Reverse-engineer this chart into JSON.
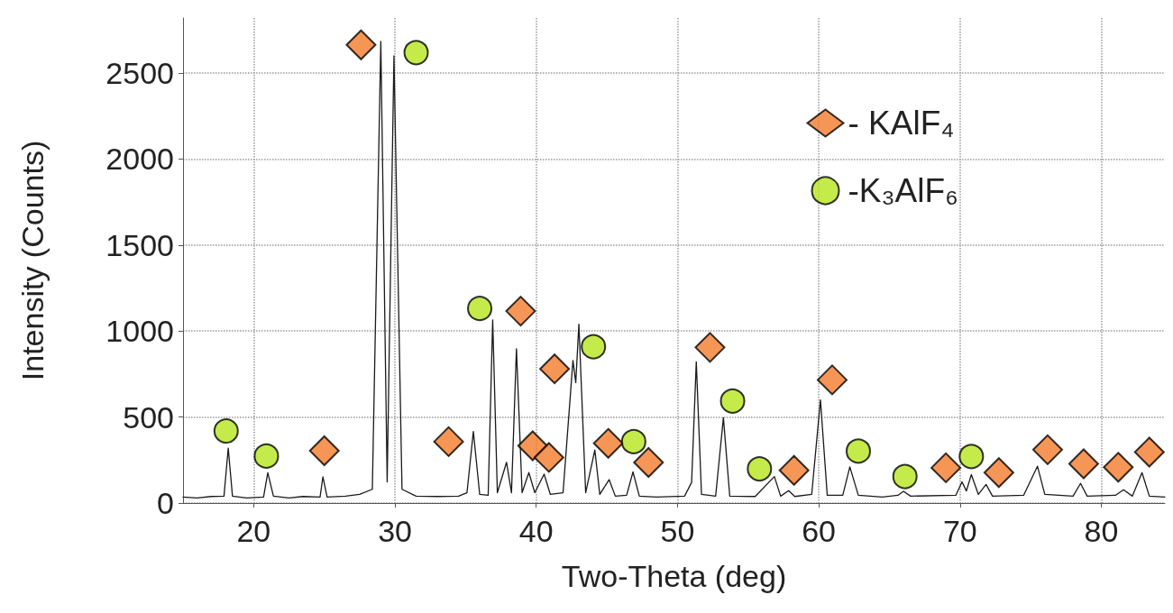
{
  "chart_data": {
    "type": "line",
    "xlabel": "Two-Theta (deg)",
    "ylabel": "Intensity (Counts)",
    "xlim": [
      15,
      84.5
    ],
    "xticks": [
      20,
      30,
      40,
      50,
      60,
      70,
      80
    ],
    "ylim": [
      0,
      2820
    ],
    "yticks": [
      0,
      500,
      1000,
      1500,
      2000,
      2500
    ],
    "grid": true,
    "legend": "top right",
    "series": [
      {
        "color": "#1a1a1a",
        "marker": "none",
        "line_style": "solid",
        "x": [
          15,
          16,
          17,
          17.9,
          18.2,
          18.5,
          19.5,
          20.7,
          21.0,
          21.4,
          22.5,
          23.5,
          24.7,
          24.9,
          25.2,
          26.5,
          27.5,
          28.4,
          29.0,
          29.45,
          29.93,
          30.5,
          31.5,
          33,
          34.5,
          35.1,
          35.55,
          36.0,
          36.6,
          36.92,
          37.25,
          37.9,
          38.25,
          38.6,
          39.0,
          39.48,
          39.9,
          40.56,
          41,
          41.9,
          42.6,
          42.8,
          43.02,
          43.5,
          44.15,
          44.5,
          45.16,
          45.6,
          46.4,
          46.85,
          47.3,
          48.5,
          50.5,
          51.0,
          51.33,
          51.7,
          52.7,
          53.25,
          53.7,
          55.5,
          56.86,
          57.3,
          57.87,
          58.3,
          59.5,
          60.12,
          60.6,
          61.7,
          62.2,
          62.8,
          64.5,
          65.6,
          66.0,
          66.5,
          69.7,
          70.14,
          70.45,
          70.8,
          71.3,
          71.84,
          72.3,
          74.5,
          75.48,
          76.0,
          78.0,
          78.53,
          79.0,
          81.0,
          81.57,
          82.2,
          82.88,
          83.4,
          84.5
        ],
        "values": [
          35,
          30,
          38,
          40,
          319,
          40,
          30,
          35,
          176,
          40,
          30,
          38,
          35,
          152,
          35,
          40,
          50,
          80,
          2684,
          123,
          2600,
          80,
          40,
          38,
          40,
          60,
          416,
          50,
          45,
          1065,
          60,
          237,
          60,
          897,
          60,
          177,
          60,
          168,
          50,
          60,
          829,
          700,
          1040,
          60,
          308,
          50,
          136,
          40,
          45,
          181,
          40,
          35,
          40,
          120,
          821,
          50,
          40,
          496,
          40,
          38,
          154,
          40,
          72,
          38,
          50,
          600,
          45,
          45,
          210,
          45,
          35,
          45,
          68,
          40,
          45,
          123,
          70,
          165,
          50,
          108,
          40,
          45,
          214,
          50,
          40,
          114,
          40,
          45,
          77,
          40,
          177,
          40,
          35
        ]
      },
      {
        "type": "scatter",
        "name": "- KAlF₄",
        "color": "#f47c2c",
        "marker": "diamond",
        "x": [
          25.0,
          27.6,
          33.8,
          38.9,
          39.75,
          40.9,
          41.3,
          45.1,
          47.95,
          52.3,
          58.25,
          60.95,
          69.0,
          72.75,
          76.2,
          78.75,
          81.2,
          83.4
        ],
        "values": [
          304,
          2664,
          357,
          1116,
          333,
          265,
          780,
          347,
          236,
          905,
          190,
          716,
          205,
          177,
          310,
          228,
          208,
          296
        ]
      },
      {
        "type": "scatter",
        "name": "-K₃AlF₆",
        "color": "#b5e61d",
        "marker": "circle",
        "x": [
          18.05,
          20.9,
          31.5,
          36.0,
          44.05,
          46.9,
          53.9,
          55.8,
          62.8,
          66.1,
          70.8
        ],
        "values": [
          419,
          273,
          2619,
          1131,
          909,
          357,
          593,
          199,
          302,
          154,
          271
        ]
      }
    ]
  }
}
